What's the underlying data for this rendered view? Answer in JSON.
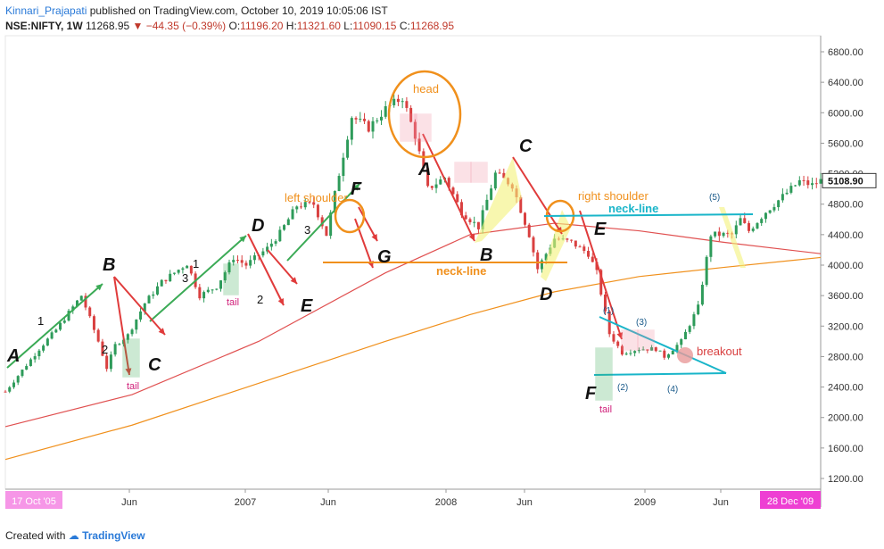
{
  "header": {
    "author": "Kinnari_Prajapati",
    "published_text": "published on TradingView.com, October 10, 2019 10:05:06 IST",
    "symbol": "NSE:NIFTY, 1W",
    "last": "11268.95",
    "change": "▼ −44.35 (−0.39%)",
    "o_label": "O:",
    "o_val": "11196.20",
    "h_label": "H:",
    "h_val": "11321.60",
    "l_label": "L:",
    "l_val": "11090.15",
    "c_label": "C:",
    "c_val": "11268.95"
  },
  "footer": {
    "created_with": "Created with",
    "brand": "TradingView"
  },
  "colors": {
    "up": "#2e9b5a",
    "down": "#d94040",
    "green_arrow": "#3aaa55",
    "red_arrow": "#e03b3b",
    "orange": "#f0901c",
    "cyan": "#19b5c9",
    "ma_red": "#e05050",
    "ma_orange": "#f0901c",
    "pink_box": "#f08aa0",
    "magenta": "#ee3fd3",
    "yellow": "#f3f27a"
  },
  "chart_data": {
    "type": "candlestick",
    "yaxis": {
      "ticks": [
        "6800.00",
        "6400.00",
        "6000.00",
        "5600.00",
        "5200.00",
        "4800.00",
        "4400.00",
        "4000.00",
        "3600.00",
        "3200.00",
        "2800.00",
        "2400.00",
        "2000.00",
        "1600.00",
        "1200.00"
      ],
      "current_price": "5108.90"
    },
    "xaxis": {
      "ticks": [
        "Jun",
        "2007",
        "Jun",
        "2008",
        "Jun",
        "2009",
        "Jun"
      ],
      "range_start": "17 Oct '05",
      "range_end": "28 Dec '09"
    },
    "price_path": [
      [
        0,
        2340
      ],
      [
        4,
        2620
      ],
      [
        8,
        2900
      ],
      [
        12,
        3150
      ],
      [
        16,
        3450
      ],
      [
        18,
        3600
      ],
      [
        22,
        3000
      ],
      [
        24,
        2650
      ],
      [
        26,
        2950
      ],
      [
        29,
        3080
      ],
      [
        33,
        3500
      ],
      [
        37,
        3780
      ],
      [
        43,
        4020
      ],
      [
        46,
        3600
      ],
      [
        50,
        3720
      ],
      [
        54,
        4100
      ],
      [
        57,
        4000
      ],
      [
        62,
        4220
      ],
      [
        65,
        4420
      ],
      [
        69,
        4780
      ],
      [
        73,
        4800
      ],
      [
        76,
        4400
      ],
      [
        79,
        5200
      ],
      [
        82,
        5950
      ],
      [
        86,
        5800
      ],
      [
        90,
        6050
      ],
      [
        94,
        6200
      ],
      [
        97,
        5700
      ],
      [
        100,
        5000
      ],
      [
        104,
        5150
      ],
      [
        108,
        4700
      ],
      [
        112,
        4500
      ],
      [
        116,
        5200
      ],
      [
        120,
        5050
      ],
      [
        124,
        4400
      ],
      [
        126,
        3950
      ],
      [
        130,
        4350
      ],
      [
        134,
        4300
      ],
      [
        138,
        4150
      ],
      [
        140,
        3900
      ],
      [
        143,
        3100
      ],
      [
        146,
        2850
      ],
      [
        150,
        2900
      ],
      [
        154,
        2900
      ],
      [
        156,
        2800
      ],
      [
        160,
        3000
      ],
      [
        164,
        3450
      ],
      [
        167,
        4400
      ],
      [
        170,
        4400
      ],
      [
        172,
        4400
      ],
      [
        174,
        4600
      ],
      [
        176,
        4450
      ],
      [
        180,
        4700
      ],
      [
        184,
        4900
      ],
      [
        188,
        5100
      ],
      [
        191,
        5050
      ],
      [
        193,
        5108.9
      ]
    ],
    "moving_averages": [
      {
        "color": "red",
        "points": [
          [
            0,
            1880
          ],
          [
            30,
            2300
          ],
          [
            60,
            3000
          ],
          [
            90,
            3900
          ],
          [
            110,
            4400
          ],
          [
            130,
            4550
          ],
          [
            150,
            4450
          ],
          [
            170,
            4300
          ],
          [
            193,
            4150
          ]
        ]
      },
      {
        "color": "orange",
        "points": [
          [
            0,
            1450
          ],
          [
            30,
            1900
          ],
          [
            60,
            2450
          ],
          [
            90,
            3000
          ],
          [
            110,
            3350
          ],
          [
            130,
            3650
          ],
          [
            150,
            3850
          ],
          [
            170,
            3970
          ],
          [
            193,
            4100
          ]
        ]
      }
    ],
    "annotations": {
      "letters": [
        "A",
        "B",
        "C",
        "D",
        "E",
        "F",
        "G",
        "A",
        "B",
        "C",
        "D",
        "E",
        "F"
      ],
      "numbers": [
        "1",
        "2",
        "3",
        "1",
        "2",
        "3"
      ],
      "texts": [
        "head",
        "left shoulder",
        "right shoulder",
        "neck-line",
        "neck-line",
        "tail",
        "tail",
        "tail",
        "breakout"
      ],
      "triangle_labels": [
        "(1)",
        "(2)",
        "(3)",
        "(4)",
        "(5)"
      ]
    }
  }
}
